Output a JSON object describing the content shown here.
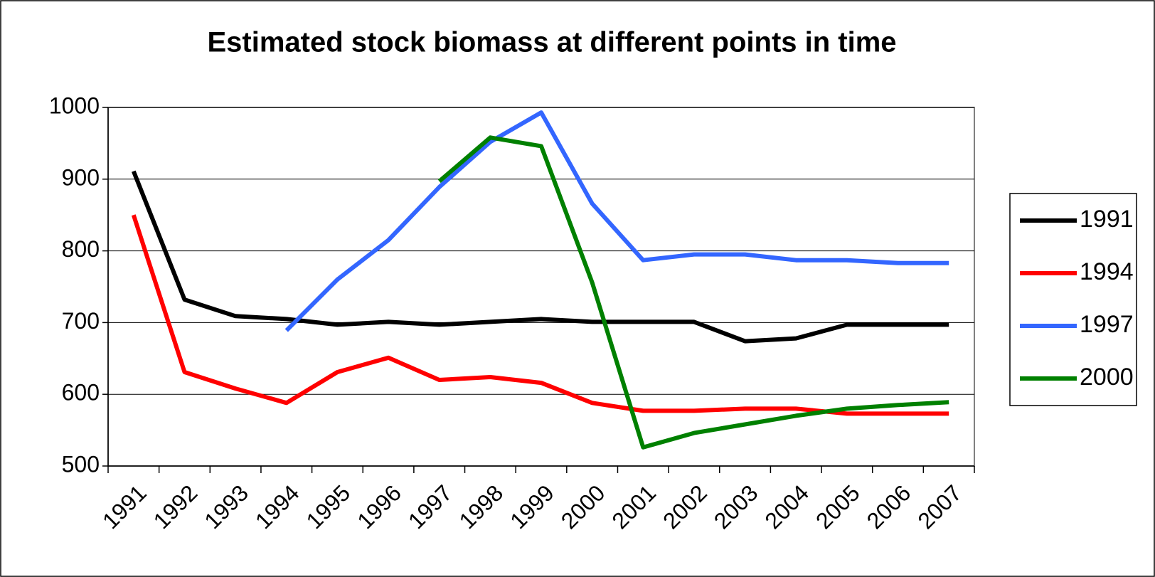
{
  "chart_data": {
    "type": "line",
    "title": "Estimated stock biomass at different points in time",
    "categories": [
      "1991",
      "1992",
      "1993",
      "1994",
      "1995",
      "1996",
      "1997",
      "1998",
      "1999",
      "2000",
      "2001",
      "2002",
      "2003",
      "2004",
      "2005",
      "2006",
      "2007"
    ],
    "series": [
      {
        "name": "1991",
        "color": "#000000",
        "values": [
          911,
          732,
          709,
          705,
          697,
          701,
          697,
          701,
          705,
          701,
          701,
          701,
          674,
          678,
          697,
          697,
          697
        ]
      },
      {
        "name": "1994",
        "color": "#ff0000",
        "values": [
          850,
          631,
          608,
          588,
          631,
          651,
          620,
          624,
          616,
          588,
          577,
          577,
          580,
          580,
          573,
          573,
          573
        ]
      },
      {
        "name": "1997",
        "color": "#3366ff",
        "values": [
          null,
          null,
          null,
          689,
          760,
          815,
          889,
          952,
          993,
          866,
          787,
          795,
          795,
          787,
          787,
          783,
          783
        ]
      },
      {
        "name": "2000",
        "color": "#008000",
        "values": [
          null,
          null,
          null,
          null,
          null,
          null,
          897,
          958,
          946,
          756,
          526,
          546,
          558,
          570,
          580,
          585,
          589
        ]
      }
    ],
    "ylim": [
      500,
      1000
    ],
    "yticks": [
      500,
      600,
      700,
      800,
      900,
      1000
    ],
    "grid": true,
    "legend": "right"
  }
}
